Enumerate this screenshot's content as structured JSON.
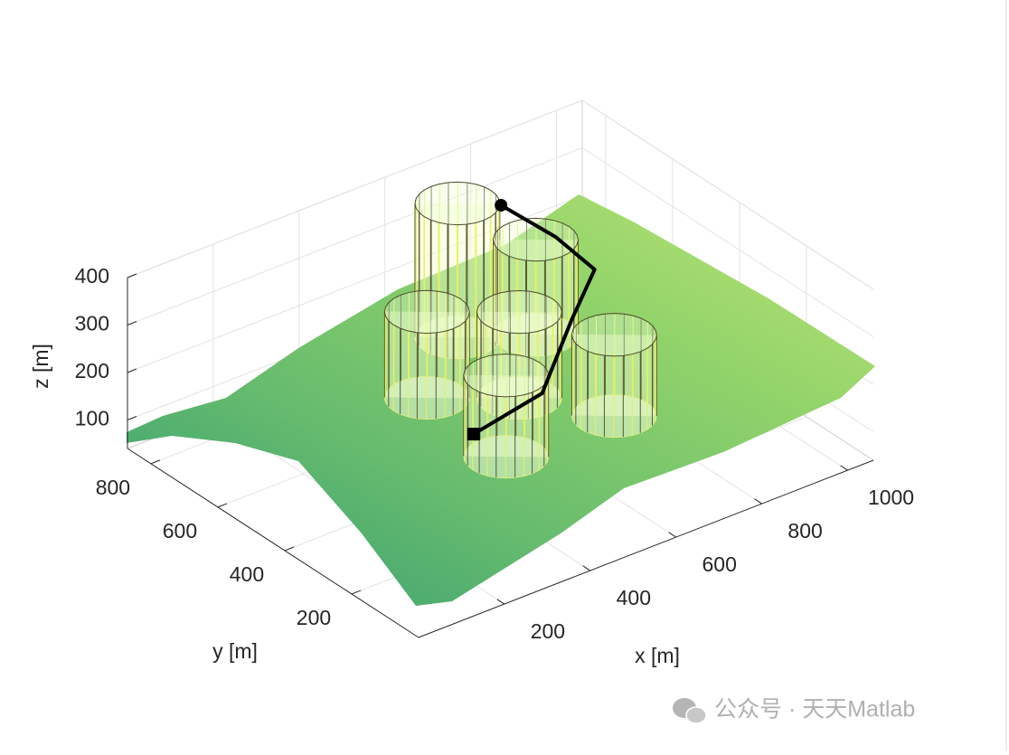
{
  "chart_data": {
    "type": "surface3d",
    "xlabel": "x [m]",
    "ylabel": "y [m]",
    "zlabel": "z [m]",
    "xlim": [
      0,
      1060
    ],
    "ylim": [
      0,
      870
    ],
    "zlim": [
      40,
      400
    ],
    "xticks": [
      200,
      400,
      600,
      800,
      1000
    ],
    "yticks": [
      200,
      400,
      600,
      800
    ],
    "zticks": [
      100,
      200,
      300,
      400
    ],
    "grid": true,
    "cylinders": [
      {
        "x": 730,
        "y": 820,
        "radius": 78,
        "z_top": 322
      },
      {
        "x": 850,
        "y": 740,
        "radius": 78,
        "z_top": 240
      },
      {
        "x": 550,
        "y": 680,
        "radius": 78,
        "z_top": 221
      },
      {
        "x": 684,
        "y": 576,
        "radius": 78,
        "z_top": 221
      },
      {
        "x": 533,
        "y": 422,
        "radius": 78,
        "z_top": 211
      },
      {
        "x": 782,
        "y": 418,
        "radius": 78,
        "z_top": 211
      }
    ],
    "path": {
      "x": [
        366,
        536,
        698,
        805,
        800,
        781
      ],
      "y": [
        305,
        318,
        439,
        506,
        616,
        755
      ],
      "z": [
        200,
        220,
        260,
        300,
        320,
        330
      ]
    },
    "watermark": "公众号 · 天天Matlab"
  }
}
